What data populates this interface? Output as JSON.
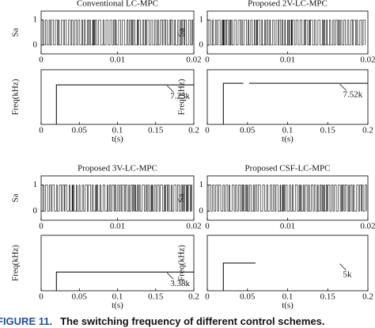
{
  "chart_data": [
    {
      "type": "pulse",
      "title": "Conventional LC-MPC",
      "ylabel": "Sa",
      "xlim": [
        0,
        0.02
      ],
      "xticks": [
        0,
        0.01,
        0.02
      ],
      "ylim": [
        -0.35,
        1.35
      ],
      "yticks": [
        0,
        1
      ]
    },
    {
      "type": "line",
      "ylabel": "Freq(kHz)",
      "xlabel": "t(s)",
      "xlim": [
        0,
        0.2
      ],
      "xticks": [
        0,
        0.05,
        0.1,
        0.15,
        0.2
      ],
      "ylim": [
        0,
        10
      ],
      "annotation": "7.23k",
      "series": [
        {
          "color": "#000000",
          "x": [
            0.02,
            0.02,
            0.2
          ],
          "values": [
            0,
            7.23,
            7.23
          ]
        }
      ]
    },
    {
      "type": "pulse",
      "title": "Proposed 2V-LC-MPC",
      "ylabel": "Sa",
      "xlim": [
        0,
        0.02
      ],
      "xticks": [
        0,
        0.01,
        0.02
      ],
      "ylim": [
        -0.35,
        1.35
      ],
      "yticks": [
        0,
        1
      ]
    },
    {
      "type": "line",
      "ylabel": "Freq(kHz)",
      "xlabel": "t(s)",
      "xlim": [
        0,
        0.2
      ],
      "xticks": [
        0,
        0.05,
        0.1,
        0.15,
        0.2
      ],
      "ylim": [
        0,
        10
      ],
      "annotation": "7.52k",
      "series": [
        {
          "color": "#000000",
          "x": [
            0.02,
            0.02,
            0.045,
            0.048,
            0.052,
            0.2
          ],
          "values": [
            0,
            7.52,
            7.52,
            null,
            7.52,
            7.52
          ]
        }
      ]
    },
    {
      "type": "pulse",
      "title": "Proposed 3V-LC-MPC",
      "ylabel": "Sa",
      "xlim": [
        0,
        0.02
      ],
      "xticks": [
        0,
        0.01,
        0.02
      ],
      "ylim": [
        -0.35,
        1.35
      ],
      "yticks": [
        0,
        1
      ]
    },
    {
      "type": "line",
      "ylabel": "Freq(kHz)",
      "xlabel": "t(s)",
      "xlim": [
        0,
        0.2
      ],
      "xticks": [
        0,
        0.05,
        0.1,
        0.15,
        0.2
      ],
      "ylim": [
        0,
        10
      ],
      "annotation": "3.38k",
      "series": [
        {
          "color": "#000000",
          "x": [
            0.02,
            0.02,
            0.2
          ],
          "values": [
            0,
            3.38,
            3.38
          ]
        }
      ]
    },
    {
      "type": "pulse",
      "title": "Proposed CSF-LC-MPC",
      "ylabel": "Sa",
      "xlim": [
        0,
        0.02
      ],
      "xticks": [
        0,
        0.01,
        0.02
      ],
      "ylim": [
        -0.35,
        1.35
      ],
      "yticks": [
        0,
        1
      ]
    },
    {
      "type": "line",
      "ylabel": "Freq(kHz)",
      "xlabel": "t(s)",
      "xlim": [
        0,
        0.2
      ],
      "xticks": [
        0,
        0.05,
        0.1,
        0.15,
        0.2
      ],
      "ylim": [
        0,
        10
      ],
      "annotation": "5k",
      "series": [
        {
          "color": "#000000",
          "x": [
            0.02,
            0.02,
            0.06
          ],
          "values": [
            0,
            5,
            5
          ]
        }
      ]
    }
  ],
  "figure_caption": {
    "label": "FIGURE 11.",
    "text": "The switching frequency of different control schemes."
  }
}
